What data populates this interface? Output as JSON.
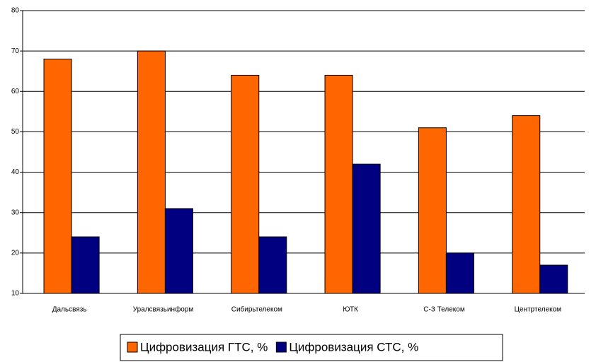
{
  "chart_data": {
    "type": "bar",
    "categories": [
      "Дальсвязь",
      "Уралсвязьинформ",
      "Сибирьтелеком",
      "ЮТК",
      "С-З Телеком",
      "Центртелеком"
    ],
    "series": [
      {
        "name": "Цифровизация ГТС, %",
        "color": "#ff6600",
        "values": [
          68,
          70,
          64,
          64,
          51,
          54
        ]
      },
      {
        "name": "Цифровизация СТС, %",
        "color": "#000080",
        "values": [
          24,
          31,
          24,
          42,
          20,
          17
        ]
      }
    ],
    "ylim": [
      10,
      80
    ],
    "yticks": [
      10,
      20,
      30,
      40,
      50,
      60,
      70,
      80
    ],
    "grid": true,
    "legend": "bottom"
  }
}
